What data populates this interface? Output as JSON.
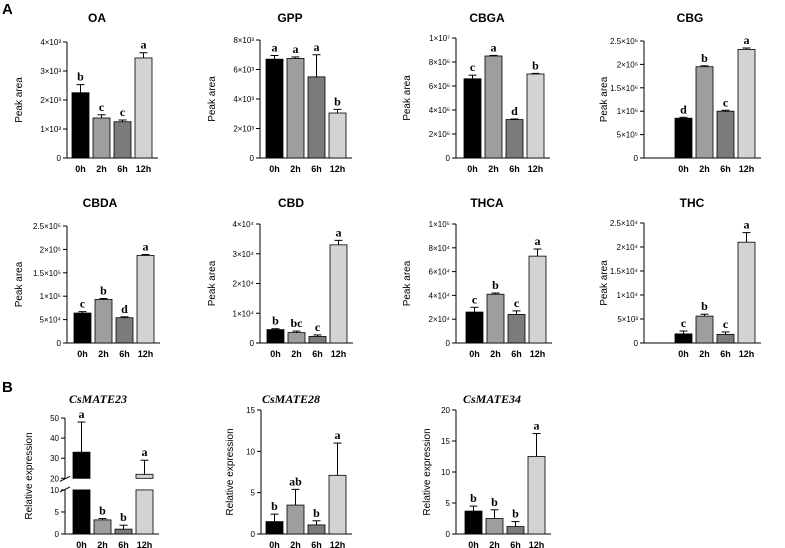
{
  "panel_labels": [
    "A",
    "B"
  ],
  "colors": {
    "0h": "#000000",
    "2h": "#9e9e9e",
    "6h": "#7b7b7b",
    "12h": "#d3d3d3"
  },
  "chart_data": [
    {
      "type": "bar",
      "title": "OA",
      "ylabel": "Peak area",
      "categories": [
        "0h",
        "2h",
        "6h",
        "12h"
      ],
      "values": [
        2250,
        1380,
        1250,
        3450
      ],
      "errors": [
        280,
        110,
        60,
        180
      ],
      "letters": [
        "b",
        "c",
        "c",
        "a"
      ],
      "ylim": [
        0,
        4000
      ],
      "yticks": [
        0,
        1000,
        2000,
        3000,
        4000
      ],
      "ytick_labels": [
        "0",
        "1×10³",
        "2×10³",
        "3×10³",
        "4×10³"
      ]
    },
    {
      "type": "bar",
      "title": "GPP",
      "ylabel": "Peak area",
      "categories": [
        "0h",
        "2h",
        "6h",
        "12h"
      ],
      "values": [
        6700,
        6750,
        5500,
        3050
      ],
      "errors": [
        250,
        100,
        1500,
        250
      ],
      "letters": [
        "a",
        "a",
        "a",
        "b"
      ],
      "ylim": [
        0,
        8000
      ],
      "yticks": [
        0,
        2000,
        4000,
        6000,
        8000
      ],
      "ytick_labels": [
        "0",
        "2×10³",
        "4×10³",
        "6×10³",
        "8×10³"
      ]
    },
    {
      "type": "bar",
      "title": "CBGA",
      "ylabel": "Peak area",
      "categories": [
        "0h",
        "2h",
        "6h",
        "12h"
      ],
      "values": [
        6.6,
        8.5,
        3.2,
        7.0
      ],
      "errors": [
        0.3,
        0.05,
        0.05,
        0.05
      ],
      "letters": [
        "c",
        "a",
        "d",
        "b"
      ],
      "ylim": [
        0,
        10
      ],
      "yticks": [
        0,
        2,
        4,
        6,
        8,
        10
      ],
      "ytick_labels": [
        "0",
        "2×10⁶",
        "4×10⁶",
        "6×10⁶",
        "8×10⁶",
        "1×10⁷"
      ]
    },
    {
      "type": "bar",
      "title": "CBG",
      "ylabel": "Peak area",
      "categories": [
        "0h",
        "2h",
        "6h",
        "12h"
      ],
      "values": [
        0.85,
        1.95,
        1.0,
        2.32
      ],
      "errors": [
        0.02,
        0.02,
        0.02,
        0.03
      ],
      "letters": [
        "d",
        "b",
        "c",
        "a"
      ],
      "ylim": [
        0,
        2.5
      ],
      "yticks": [
        0,
        0.5,
        1.0,
        1.5,
        2.0,
        2.5
      ],
      "ytick_labels": [
        "0",
        "5×10⁵",
        "1×10⁶",
        "1.5×10⁶",
        "2×10⁶",
        "2.5×10⁶"
      ]
    },
    {
      "type": "bar",
      "title": "CBDA",
      "ylabel": "Peak area",
      "categories": [
        "0h",
        "2h",
        "6h",
        "12h"
      ],
      "values": [
        0.64,
        0.93,
        0.54,
        1.87
      ],
      "errors": [
        0.03,
        0.02,
        0.02,
        0.02
      ],
      "letters": [
        "c",
        "b",
        "d",
        "a"
      ],
      "ylim": [
        0,
        2.5
      ],
      "yticks": [
        0,
        0.5,
        1.0,
        1.5,
        2.0,
        2.5
      ],
      "ytick_labels": [
        "0",
        "5×10⁴",
        "1×10⁵",
        "1.5×10⁵",
        "2×10⁵",
        "2.5×10⁵"
      ]
    },
    {
      "type": "bar",
      "title": "CBD",
      "ylabel": "Peak area",
      "categories": [
        "0h",
        "2h",
        "6h",
        "12h"
      ],
      "values": [
        0.45,
        0.35,
        0.22,
        3.3
      ],
      "errors": [
        0.03,
        0.05,
        0.05,
        0.15
      ],
      "letters": [
        "b",
        "bc",
        "c",
        "a"
      ],
      "ylim": [
        0,
        4
      ],
      "yticks": [
        0,
        1,
        2,
        3,
        4
      ],
      "ytick_labels": [
        "0",
        "1×10⁴",
        "2×10⁴",
        "3×10⁴",
        "4×10⁴"
      ]
    },
    {
      "type": "bar",
      "title": "THCA",
      "ylabel": "Peak area",
      "categories": [
        "0h",
        "2h",
        "6h",
        "12h"
      ],
      "values": [
        2.6,
        4.1,
        2.4,
        7.3
      ],
      "errors": [
        0.4,
        0.1,
        0.3,
        0.6
      ],
      "letters": [
        "c",
        "b",
        "c",
        "a"
      ],
      "ylim": [
        0,
        10
      ],
      "yticks": [
        0,
        2,
        4,
        6,
        8,
        10
      ],
      "ytick_labels": [
        "0",
        "2×10⁴",
        "4×10⁴",
        "6×10⁴",
        "8×10⁴",
        "1×10⁵"
      ]
    },
    {
      "type": "bar",
      "title": "THC",
      "ylabel": "Peak area",
      "categories": [
        "0h",
        "2h",
        "6h",
        "12h"
      ],
      "values": [
        0.19,
        0.56,
        0.18,
        2.1
      ],
      "errors": [
        0.06,
        0.04,
        0.05,
        0.2
      ],
      "letters": [
        "c",
        "b",
        "c",
        "a"
      ],
      "ylim": [
        0,
        2.5
      ],
      "yticks": [
        0,
        0.5,
        1.0,
        1.5,
        2.0,
        2.5
      ],
      "ytick_labels": [
        "0",
        "5×10³",
        "1×10⁴",
        "1.5×10⁴",
        "2×10⁴",
        "2.5×10⁴"
      ]
    },
    {
      "type": "bar",
      "title": "CsMATE23",
      "ylabel": "Relative expression",
      "categories": [
        "0h",
        "2h",
        "6h",
        "12h"
      ],
      "values": [
        33,
        3.2,
        1.1,
        22
      ],
      "errors": [
        15,
        0.3,
        0.9,
        7
      ],
      "letters": [
        "a",
        "b",
        "b",
        "a"
      ],
      "ylim": [
        0,
        50
      ],
      "broken_axis": {
        "lower": [
          0,
          10
        ],
        "upper": [
          20,
          50
        ]
      },
      "yticks": [
        0,
        5,
        10,
        20,
        30,
        40,
        50
      ],
      "ytick_labels": [
        "0",
        "5",
        "10",
        "20",
        "30",
        "40",
        "50"
      ]
    },
    {
      "type": "bar",
      "title": "CsMATE28",
      "ylabel": "Relative expression",
      "categories": [
        "0h",
        "2h",
        "6h",
        "12h"
      ],
      "values": [
        1.5,
        3.5,
        1.1,
        7.1
      ],
      "errors": [
        0.9,
        1.9,
        0.5,
        3.9
      ],
      "letters": [
        "b",
        "ab",
        "b",
        "a"
      ],
      "ylim": [
        0,
        15
      ],
      "yticks": [
        0,
        5,
        10,
        15
      ],
      "ytick_labels": [
        "0",
        "5",
        "10",
        "15"
      ]
    },
    {
      "type": "bar",
      "title": "CsMATE34",
      "ylabel": "Relative expression",
      "categories": [
        "0h",
        "2h",
        "6h",
        "12h"
      ],
      "values": [
        3.7,
        2.5,
        1.2,
        12.5
      ],
      "errors": [
        0.8,
        1.4,
        0.8,
        3.7
      ],
      "letters": [
        "b",
        "b",
        "b",
        "a"
      ],
      "ylim": [
        0,
        20
      ],
      "yticks": [
        0,
        5,
        10,
        15,
        20
      ],
      "ytick_labels": [
        "0",
        "5",
        "10",
        "15",
        "20"
      ]
    }
  ]
}
